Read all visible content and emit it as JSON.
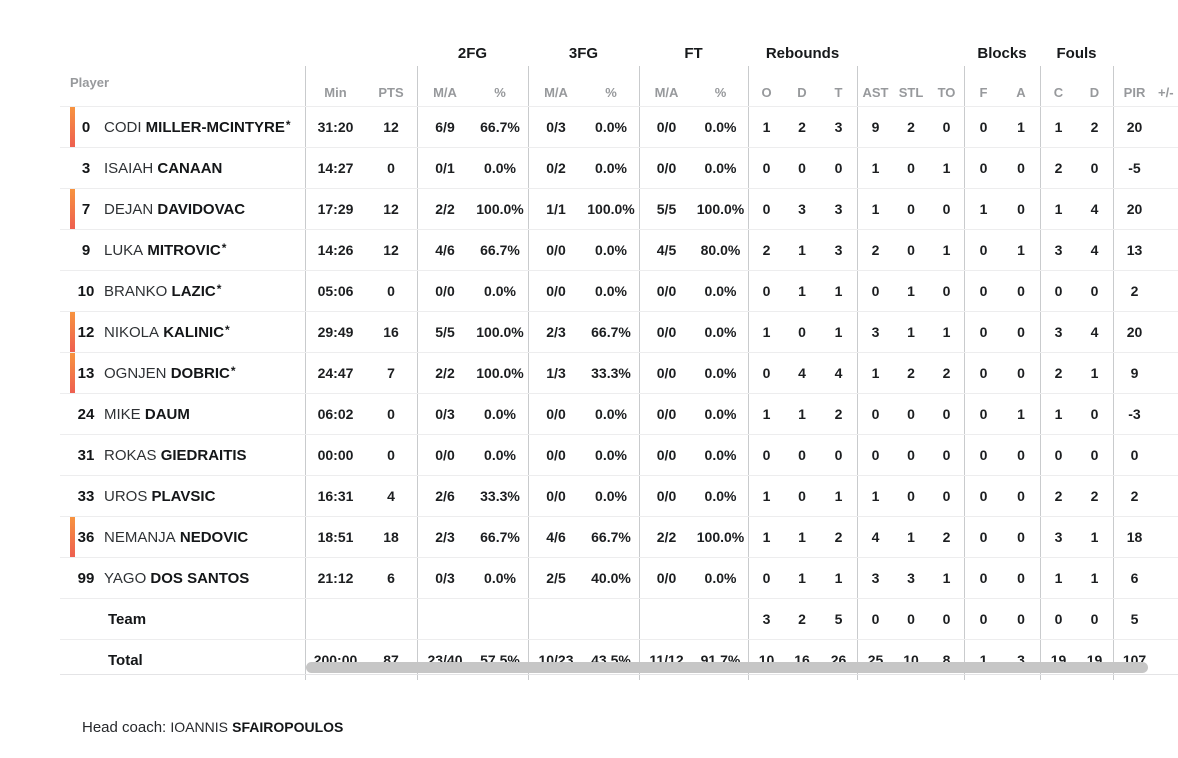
{
  "colors": {
    "on_court_bar_top": "#F7933F",
    "on_court_bar_bottom": "#EE5F50",
    "scrollbar_thumb": "#C6C6C6"
  },
  "table": {
    "player_header": "Player",
    "groups": {
      "fg2": "2FG",
      "fg3": "3FG",
      "ft": "FT",
      "rebounds": "Rebounds",
      "blocks": "Blocks",
      "fouls": "Fouls"
    },
    "columns": {
      "min": "Min",
      "pts": "PTS",
      "ma": "M/A",
      "pct": "%",
      "o": "O",
      "d": "D",
      "t": "T",
      "ast": "AST",
      "stl": "STL",
      "to": "TO",
      "f": "F",
      "a": "A",
      "c": "C",
      "d2": "D",
      "pir": "PIR",
      "plus_minus": "+/-"
    },
    "rows": [
      {
        "num": "0",
        "first": "CODI",
        "last": "MILLER-MCINTYRE",
        "starter": true,
        "on_court": true,
        "min": "31:20",
        "pts": "12",
        "fg2_ma": "6/9",
        "fg2_pct": "66.7%",
        "fg3_ma": "0/3",
        "fg3_pct": "0.0%",
        "ft_ma": "0/0",
        "ft_pct": "0.0%",
        "reb_o": "1",
        "reb_d": "2",
        "reb_t": "3",
        "ast": "9",
        "stl": "2",
        "to": "0",
        "blk_f": "0",
        "blk_a": "1",
        "foul_c": "1",
        "foul_d": "2",
        "pir": "20"
      },
      {
        "num": "3",
        "first": "ISAIAH",
        "last": "CANAAN",
        "starter": false,
        "on_court": false,
        "min": "14:27",
        "pts": "0",
        "fg2_ma": "0/1",
        "fg2_pct": "0.0%",
        "fg3_ma": "0/2",
        "fg3_pct": "0.0%",
        "ft_ma": "0/0",
        "ft_pct": "0.0%",
        "reb_o": "0",
        "reb_d": "0",
        "reb_t": "0",
        "ast": "1",
        "stl": "0",
        "to": "1",
        "blk_f": "0",
        "blk_a": "0",
        "foul_c": "2",
        "foul_d": "0",
        "pir": "-5"
      },
      {
        "num": "7",
        "first": "DEJAN",
        "last": "DAVIDOVAC",
        "starter": false,
        "on_court": true,
        "min": "17:29",
        "pts": "12",
        "fg2_ma": "2/2",
        "fg2_pct": "100.0%",
        "fg3_ma": "1/1",
        "fg3_pct": "100.0%",
        "ft_ma": "5/5",
        "ft_pct": "100.0%",
        "reb_o": "0",
        "reb_d": "3",
        "reb_t": "3",
        "ast": "1",
        "stl": "0",
        "to": "0",
        "blk_f": "1",
        "blk_a": "0",
        "foul_c": "1",
        "foul_d": "4",
        "pir": "20"
      },
      {
        "num": "9",
        "first": "LUKA",
        "last": "MITROVIC",
        "starter": true,
        "on_court": false,
        "min": "14:26",
        "pts": "12",
        "fg2_ma": "4/6",
        "fg2_pct": "66.7%",
        "fg3_ma": "0/0",
        "fg3_pct": "0.0%",
        "ft_ma": "4/5",
        "ft_pct": "80.0%",
        "reb_o": "2",
        "reb_d": "1",
        "reb_t": "3",
        "ast": "2",
        "stl": "0",
        "to": "1",
        "blk_f": "0",
        "blk_a": "1",
        "foul_c": "3",
        "foul_d": "4",
        "pir": "13"
      },
      {
        "num": "10",
        "first": "BRANKO",
        "last": "LAZIC",
        "starter": true,
        "on_court": false,
        "min": "05:06",
        "pts": "0",
        "fg2_ma": "0/0",
        "fg2_pct": "0.0%",
        "fg3_ma": "0/0",
        "fg3_pct": "0.0%",
        "ft_ma": "0/0",
        "ft_pct": "0.0%",
        "reb_o": "0",
        "reb_d": "1",
        "reb_t": "1",
        "ast": "0",
        "stl": "1",
        "to": "0",
        "blk_f": "0",
        "blk_a": "0",
        "foul_c": "0",
        "foul_d": "0",
        "pir": "2"
      },
      {
        "num": "12",
        "first": "NIKOLA",
        "last": "KALINIC",
        "starter": true,
        "on_court": true,
        "min": "29:49",
        "pts": "16",
        "fg2_ma": "5/5",
        "fg2_pct": "100.0%",
        "fg3_ma": "2/3",
        "fg3_pct": "66.7%",
        "ft_ma": "0/0",
        "ft_pct": "0.0%",
        "reb_o": "1",
        "reb_d": "0",
        "reb_t": "1",
        "ast": "3",
        "stl": "1",
        "to": "1",
        "blk_f": "0",
        "blk_a": "0",
        "foul_c": "3",
        "foul_d": "4",
        "pir": "20"
      },
      {
        "num": "13",
        "first": "OGNJEN",
        "last": "DOBRIC",
        "starter": true,
        "on_court": true,
        "min": "24:47",
        "pts": "7",
        "fg2_ma": "2/2",
        "fg2_pct": "100.0%",
        "fg3_ma": "1/3",
        "fg3_pct": "33.3%",
        "ft_ma": "0/0",
        "ft_pct": "0.0%",
        "reb_o": "0",
        "reb_d": "4",
        "reb_t": "4",
        "ast": "1",
        "stl": "2",
        "to": "2",
        "blk_f": "0",
        "blk_a": "0",
        "foul_c": "2",
        "foul_d": "1",
        "pir": "9"
      },
      {
        "num": "24",
        "first": "MIKE",
        "last": "DAUM",
        "starter": false,
        "on_court": false,
        "min": "06:02",
        "pts": "0",
        "fg2_ma": "0/3",
        "fg2_pct": "0.0%",
        "fg3_ma": "0/0",
        "fg3_pct": "0.0%",
        "ft_ma": "0/0",
        "ft_pct": "0.0%",
        "reb_o": "1",
        "reb_d": "1",
        "reb_t": "2",
        "ast": "0",
        "stl": "0",
        "to": "0",
        "blk_f": "0",
        "blk_a": "1",
        "foul_c": "1",
        "foul_d": "0",
        "pir": "-3"
      },
      {
        "num": "31",
        "first": "ROKAS",
        "last": "GIEDRAITIS",
        "starter": false,
        "on_court": false,
        "min": "00:00",
        "pts": "0",
        "fg2_ma": "0/0",
        "fg2_pct": "0.0%",
        "fg3_ma": "0/0",
        "fg3_pct": "0.0%",
        "ft_ma": "0/0",
        "ft_pct": "0.0%",
        "reb_o": "0",
        "reb_d": "0",
        "reb_t": "0",
        "ast": "0",
        "stl": "0",
        "to": "0",
        "blk_f": "0",
        "blk_a": "0",
        "foul_c": "0",
        "foul_d": "0",
        "pir": "0"
      },
      {
        "num": "33",
        "first": "UROS",
        "last": "PLAVSIC",
        "starter": false,
        "on_court": false,
        "min": "16:31",
        "pts": "4",
        "fg2_ma": "2/6",
        "fg2_pct": "33.3%",
        "fg3_ma": "0/0",
        "fg3_pct": "0.0%",
        "ft_ma": "0/0",
        "ft_pct": "0.0%",
        "reb_o": "1",
        "reb_d": "0",
        "reb_t": "1",
        "ast": "1",
        "stl": "0",
        "to": "0",
        "blk_f": "0",
        "blk_a": "0",
        "foul_c": "2",
        "foul_d": "2",
        "pir": "2"
      },
      {
        "num": "36",
        "first": "NEMANJA",
        "last": "NEDOVIC",
        "starter": false,
        "on_court": true,
        "min": "18:51",
        "pts": "18",
        "fg2_ma": "2/3",
        "fg2_pct": "66.7%",
        "fg3_ma": "4/6",
        "fg3_pct": "66.7%",
        "ft_ma": "2/2",
        "ft_pct": "100.0%",
        "reb_o": "1",
        "reb_d": "1",
        "reb_t": "2",
        "ast": "4",
        "stl": "1",
        "to": "2",
        "blk_f": "0",
        "blk_a": "0",
        "foul_c": "3",
        "foul_d": "1",
        "pir": "18"
      },
      {
        "num": "99",
        "first": "YAGO",
        "last": "DOS SANTOS",
        "starter": false,
        "on_court": false,
        "min": "21:12",
        "pts": "6",
        "fg2_ma": "0/3",
        "fg2_pct": "0.0%",
        "fg3_ma": "2/5",
        "fg3_pct": "40.0%",
        "ft_ma": "0/0",
        "ft_pct": "0.0%",
        "reb_o": "0",
        "reb_d": "1",
        "reb_t": "1",
        "ast": "3",
        "stl": "3",
        "to": "1",
        "blk_f": "0",
        "blk_a": "0",
        "foul_c": "1",
        "foul_d": "1",
        "pir": "6"
      },
      {
        "label": "Team",
        "starter": false,
        "on_court": false,
        "reb_o": "3",
        "reb_d": "2",
        "reb_t": "5",
        "ast": "0",
        "stl": "0",
        "to": "0",
        "blk_f": "0",
        "blk_a": "0",
        "foul_c": "0",
        "foul_d": "0",
        "pir": "5"
      },
      {
        "label": "Total",
        "starter": false,
        "on_court": false,
        "min": "200:00",
        "pts": "87",
        "fg2_ma": "23/40",
        "fg2_pct": "57.5%",
        "fg3_ma": "10/23",
        "fg3_pct": "43.5%",
        "ft_ma": "11/12",
        "ft_pct": "91.7%",
        "reb_o": "10",
        "reb_d": "16",
        "reb_t": "26",
        "ast": "25",
        "stl": "10",
        "to": "8",
        "blk_f": "1",
        "blk_a": "3",
        "foul_c": "19",
        "foul_d": "19",
        "pir": "107"
      }
    ]
  },
  "footer": {
    "head_coach_label": "Head coach:",
    "coach_first_name": "IOANNIS",
    "coach_last_name": "SFAIROPOULOS"
  }
}
